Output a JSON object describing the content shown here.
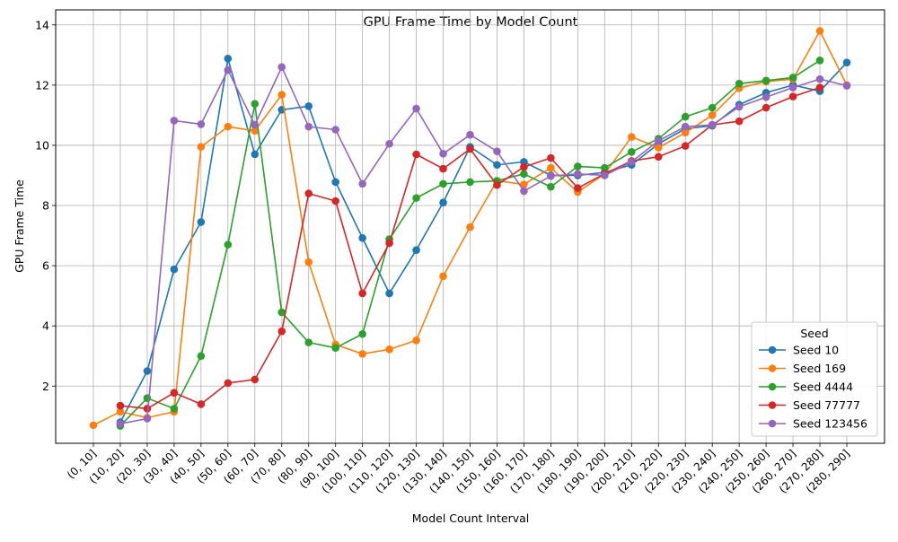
{
  "chart_data": {
    "type": "line",
    "title": "GPU Frame Time by Model Count",
    "xlabel": "Model Count Interval",
    "ylabel": "GPU Frame Time",
    "categories": [
      "(0, 10]",
      "(10, 20]",
      "(20, 30]",
      "(30, 40]",
      "(40, 50]",
      "(50, 60]",
      "(60, 70]",
      "(70, 80]",
      "(80, 90]",
      "(90, 100]",
      "(100, 110]",
      "(110, 120]",
      "(120, 130]",
      "(130, 140]",
      "(140, 150]",
      "(150, 160]",
      "(160, 170]",
      "(170, 180]",
      "(180, 190]",
      "(190, 200]",
      "(200, 210]",
      "(210, 220]",
      "(220, 230]",
      "(230, 240]",
      "(240, 250]",
      "(250, 260]",
      "(260, 270]",
      "(270, 280]",
      "(280, 290]"
    ],
    "yticks": [
      2,
      4,
      6,
      8,
      10,
      12,
      14
    ],
    "ylim": [
      0.1,
      14.5
    ],
    "grid": true,
    "legend": {
      "title": "Seed",
      "placement": "lower right"
    },
    "series": [
      {
        "name": "Seed 10",
        "color": "#1f77b4",
        "values": [
          null,
          0.8,
          2.5,
          5.88,
          7.45,
          12.88,
          9.7,
          11.18,
          11.3,
          8.78,
          6.92,
          5.08,
          6.52,
          8.1,
          9.95,
          9.35,
          9.45,
          9.0,
          9.0,
          9.1,
          9.35,
          10.05,
          10.55,
          10.65,
          11.35,
          11.75,
          12.0,
          11.8,
          12.75
        ]
      },
      {
        "name": "Seed 169",
        "color": "#ff7f0e",
        "values": [
          0.7,
          1.15,
          0.95,
          1.15,
          9.95,
          10.62,
          10.48,
          11.68,
          6.12,
          3.38,
          3.07,
          3.22,
          3.52,
          5.65,
          7.28,
          8.82,
          8.7,
          9.25,
          8.45,
          9.05,
          10.28,
          9.92,
          10.42,
          11.0,
          11.9,
          12.12,
          12.2,
          13.8,
          12.0
        ]
      },
      {
        "name": "Seed 4444",
        "color": "#2ca02c",
        "values": [
          null,
          0.68,
          1.6,
          1.25,
          3.0,
          6.7,
          11.38,
          4.45,
          3.45,
          3.27,
          3.73,
          6.88,
          8.25,
          8.72,
          8.78,
          8.82,
          9.05,
          8.62,
          9.3,
          9.25,
          9.78,
          10.22,
          10.95,
          11.25,
          12.05,
          12.15,
          12.25,
          12.82,
          null
        ]
      },
      {
        "name": "Seed 77777",
        "color": "#d62728",
        "values": [
          null,
          1.35,
          1.25,
          1.78,
          1.4,
          2.1,
          2.22,
          3.82,
          8.4,
          8.15,
          5.08,
          6.75,
          9.7,
          9.22,
          9.88,
          8.68,
          9.28,
          9.58,
          8.58,
          9.05,
          9.48,
          9.62,
          9.98,
          10.68,
          10.8,
          11.25,
          11.62,
          11.92,
          null
        ]
      },
      {
        "name": "Seed 123456",
        "color": "#9467bd",
        "values": [
          null,
          0.75,
          0.92,
          10.82,
          10.7,
          12.5,
          10.68,
          12.6,
          10.62,
          10.52,
          8.72,
          10.05,
          11.22,
          9.72,
          10.35,
          9.8,
          8.48,
          8.98,
          9.05,
          9.0,
          9.45,
          10.15,
          10.62,
          10.68,
          11.28,
          11.6,
          11.92,
          12.2,
          11.98
        ]
      }
    ]
  }
}
